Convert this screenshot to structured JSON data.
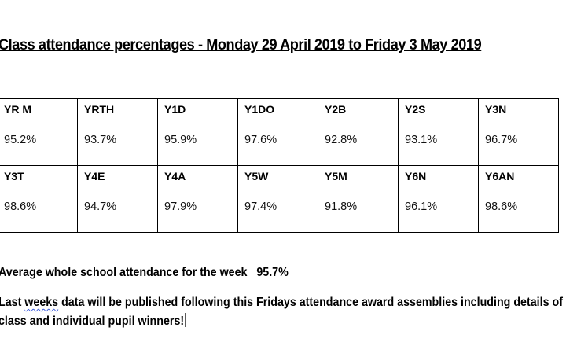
{
  "document": {
    "title": "Class attendance percentages - Monday 29 April 2019 to Friday 3 May 2019",
    "table": {
      "rows": [
        [
          {
            "class": "YR M",
            "pct": "95.2%"
          },
          {
            "class": "YRTH",
            "pct": "93.7%"
          },
          {
            "class": "Y1D",
            "pct": "95.9%"
          },
          {
            "class": "Y1DO",
            "pct": "97.6%"
          },
          {
            "class": "Y2B",
            "pct": "92.8%"
          },
          {
            "class": "Y2S",
            "pct": "93.1%"
          },
          {
            "class": "Y3N",
            "pct": "96.7%"
          }
        ],
        [
          {
            "class": "Y3T",
            "pct": "98.6%"
          },
          {
            "class": "Y4E",
            "pct": "94.7%"
          },
          {
            "class": "Y4A",
            "pct": "97.9%"
          },
          {
            "class": "Y5W",
            "pct": "97.4%"
          },
          {
            "class": "Y5M",
            "pct": "91.8%"
          },
          {
            "class": "Y6N",
            "pct": "96.1%"
          },
          {
            "class": "Y6AN",
            "pct": "98.6%"
          }
        ]
      ]
    },
    "average": {
      "label": "Average whole school attendance for the week",
      "value": "95.7%"
    },
    "note": {
      "part1": "Last ",
      "misspelled": "weeks",
      "part2": " data will be published following this Fridays attendance award assemblies including details of class and individual pupil winners!"
    }
  }
}
